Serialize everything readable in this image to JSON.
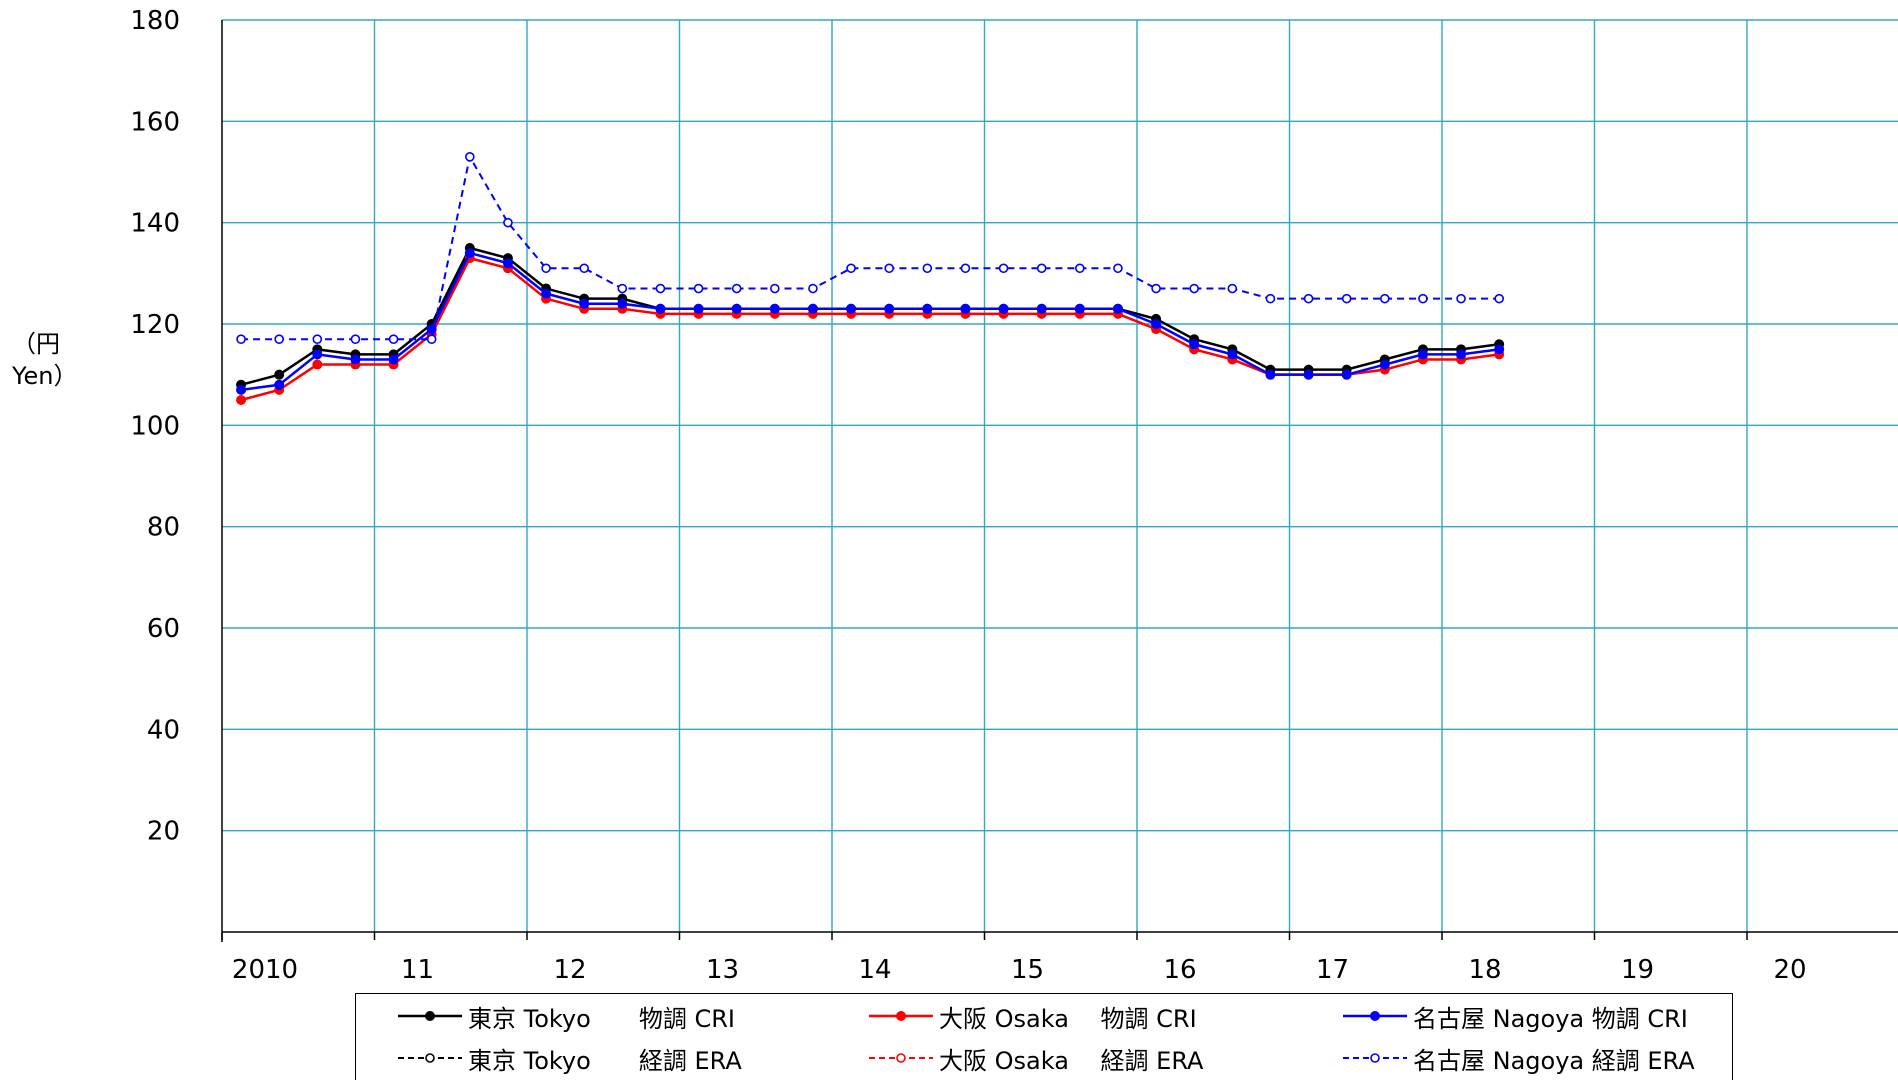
{
  "y_axis_title": "（円\nYen）",
  "chart_data": {
    "type": "line",
    "title": "",
    "xlabel": "",
    "ylabel": "（円 Yen）",
    "ylim": [
      0,
      180
    ],
    "y_ticks": [
      20,
      40,
      60,
      80,
      100,
      120,
      140,
      160,
      180
    ],
    "x_ticks": [
      "2010",
      "11",
      "12",
      "13",
      "14",
      "15",
      "16",
      "17",
      "18",
      "19",
      "20"
    ],
    "x_range": [
      2010,
      2021
    ],
    "points_per_year": 4,
    "grid": true,
    "legend_position": "bottom",
    "series": [
      {
        "name": "東京 Tokyo　　物調 CRI",
        "color": "#000000",
        "style": "solid",
        "values": [
          108,
          110,
          115,
          114,
          114,
          120,
          135,
          133,
          127,
          125,
          125,
          123,
          123,
          123,
          123,
          123,
          123,
          123,
          123,
          123,
          123,
          123,
          123,
          123,
          121,
          117,
          115,
          111,
          111,
          111,
          113,
          115,
          115,
          116
        ]
      },
      {
        "name": "大阪 Osaka　 物調 CRI",
        "color": "#ff0000",
        "style": "solid",
        "values": [
          105,
          107,
          112,
          112,
          112,
          118,
          133,
          131,
          125,
          123,
          123,
          122,
          122,
          122,
          122,
          122,
          122,
          122,
          122,
          122,
          122,
          122,
          122,
          122,
          119,
          115,
          113,
          110,
          110,
          110,
          111,
          113,
          113,
          114
        ]
      },
      {
        "name": "名古屋 Nagoya 物調 CRI",
        "color": "#0000ff",
        "style": "solid",
        "values": [
          107,
          108,
          114,
          113,
          113,
          119,
          134,
          132,
          126,
          124,
          124,
          123,
          123,
          123,
          123,
          123,
          123,
          123,
          123,
          123,
          123,
          123,
          123,
          123,
          120,
          116,
          114,
          110,
          110,
          110,
          112,
          114,
          114,
          115
        ]
      },
      {
        "name": "東京 Tokyo　　経調 ERA",
        "color": "#000000",
        "style": "dashed",
        "values": []
      },
      {
        "name": "大阪 Osaka　 経調 ERA",
        "color": "#ff0000",
        "style": "dashed",
        "values": []
      },
      {
        "name": "名古屋 Nagoya 経調 ERA",
        "color": "#0000ff",
        "style": "dashed",
        "values": [
          117,
          117,
          117,
          117,
          117,
          117,
          153,
          140,
          131,
          131,
          127,
          127,
          127,
          127,
          127,
          127,
          131,
          131,
          131,
          131,
          131,
          131,
          131,
          131,
          127,
          127,
          127,
          125,
          125,
          125,
          125,
          125,
          125,
          125
        ]
      }
    ]
  }
}
